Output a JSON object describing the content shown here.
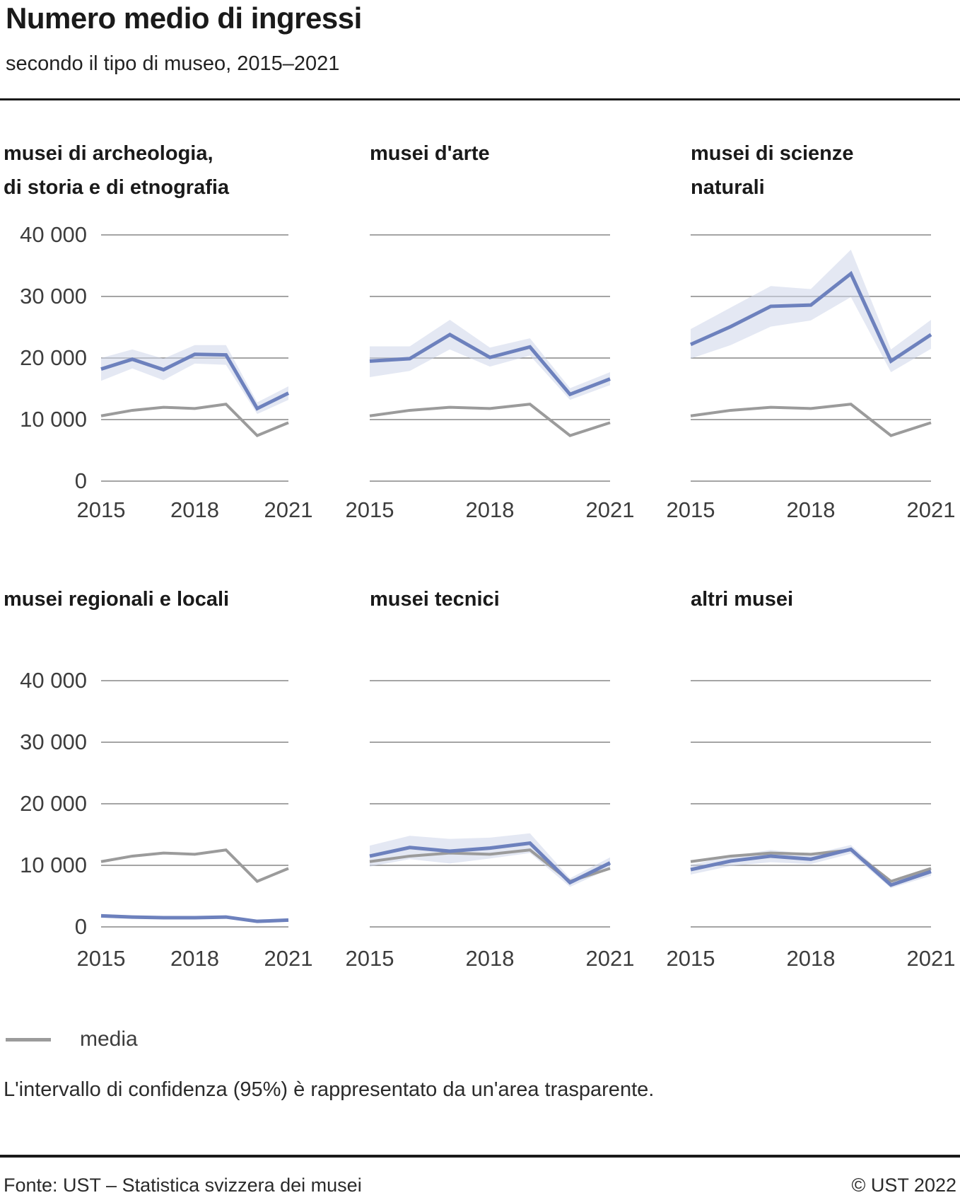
{
  "header": {
    "title": "Numero medio di ingressi",
    "subtitle": "secondo il tipo di museo, 2015–2021"
  },
  "legend": {
    "media_label": "media"
  },
  "footnote": "L'intervallo di confidenza (95%) è rappresentato da un'area trasparente.",
  "footer": {
    "source": "Fonte: UST – Statistica svizzera dei musei",
    "copyright": "© UST 2022"
  },
  "colors": {
    "accent_line": "#6d81bd",
    "confidence_band": "#cdd6ea",
    "media_line": "#9b9b9b",
    "gridline": "#878787",
    "axis_text": "#3d3d3d"
  },
  "chart_data": {
    "type": "line",
    "x": [
      2015,
      2016,
      2017,
      2018,
      2019,
      2020,
      2021
    ],
    "x_tick_labels": [
      "2015",
      "2018",
      "2021"
    ],
    "ylim": [
      0,
      40000
    ],
    "y_ticks": [
      40000,
      30000,
      20000,
      10000,
      0
    ],
    "y_tick_labels": [
      "40 000",
      "30 000",
      "20 000",
      "10 000",
      "0"
    ],
    "grid": true,
    "legend_position": "bottom-left",
    "media": {
      "name": "media",
      "values": [
        10600,
        11500,
        12000,
        11800,
        12500,
        7400,
        9500
      ]
    },
    "panels": [
      {
        "title_lines": [
          "musei di archeologia,",
          "di storia e di etnografia"
        ],
        "values": [
          18200,
          19800,
          18100,
          20600,
          20500,
          11800,
          14300
        ],
        "ci_lower": [
          16300,
          18300,
          16400,
          19100,
          18900,
          10900,
          13200
        ],
        "ci_upper": [
          20000,
          21400,
          19900,
          22100,
          22100,
          12800,
          15400
        ]
      },
      {
        "title_lines": [
          "musei d'arte"
        ],
        "values": [
          19500,
          19900,
          23800,
          20100,
          21800,
          14100,
          16600
        ],
        "ci_lower": [
          16900,
          17900,
          21400,
          18600,
          20400,
          13200,
          15600
        ],
        "ci_upper": [
          21900,
          21900,
          26200,
          21700,
          23200,
          15100,
          17700
        ]
      },
      {
        "title_lines": [
          "musei di scienze",
          "naturali"
        ],
        "values": [
          22200,
          25100,
          28400,
          28600,
          33700,
          19500,
          23800
        ],
        "ci_lower": [
          19900,
          22100,
          25100,
          26100,
          29900,
          17700,
          21500
        ],
        "ci_upper": [
          24700,
          28200,
          31700,
          31200,
          37600,
          21400,
          26200
        ]
      },
      {
        "title_lines": [
          "musei regionali e locali"
        ],
        "values": [
          1800,
          1600,
          1500,
          1500,
          1600,
          900,
          1100
        ],
        "ci_lower": [
          1500,
          1350,
          1250,
          1250,
          1350,
          700,
          900
        ],
        "ci_upper": [
          2100,
          1850,
          1750,
          1750,
          1850,
          1100,
          1300
        ]
      },
      {
        "title_lines": [
          "musei tecnici"
        ],
        "values": [
          11500,
          12900,
          12300,
          12800,
          13600,
          7200,
          10400
        ],
        "ci_lower": [
          9800,
          11000,
          10300,
          11100,
          12000,
          6500,
          9500
        ],
        "ci_upper": [
          13200,
          14800,
          14300,
          14500,
          15200,
          7900,
          11300
        ]
      },
      {
        "title_lines": [
          "altri musei"
        ],
        "values": [
          9300,
          10700,
          11500,
          11000,
          12600,
          6800,
          9000
        ],
        "ci_lower": [
          8500,
          9900,
          10500,
          10200,
          11900,
          6300,
          8300
        ],
        "ci_upper": [
          10100,
          11500,
          12500,
          11800,
          13300,
          7400,
          9700
        ]
      }
    ]
  }
}
